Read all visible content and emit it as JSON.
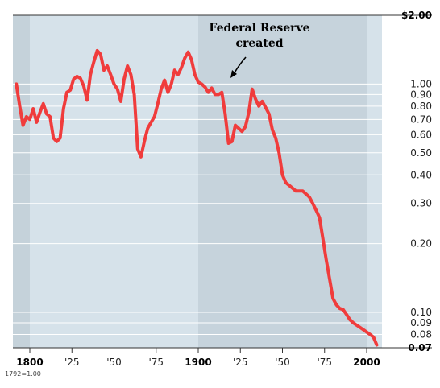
{
  "chart_data": {
    "type": "line",
    "title": "",
    "xlabel": "",
    "ylabel": "",
    "y_scale": "log",
    "xlim": [
      1792,
      2007
    ],
    "ylim": [
      0.07,
      2.0
    ],
    "grid": true,
    "y_ticks": [
      {
        "value": 2.0,
        "label": "$2.00",
        "bold": true
      },
      {
        "value": 1.0,
        "label": "1.00"
      },
      {
        "value": 0.9,
        "label": "0.90"
      },
      {
        "value": 0.8,
        "label": "0.80"
      },
      {
        "value": 0.7,
        "label": "0.70"
      },
      {
        "value": 0.6,
        "label": "0.60"
      },
      {
        "value": 0.5,
        "label": "0.50"
      },
      {
        "value": 0.4,
        "label": "0.40"
      },
      {
        "value": 0.3,
        "label": "0.30"
      },
      {
        "value": 0.2,
        "label": "0.20"
      },
      {
        "value": 0.1,
        "label": "0.10"
      },
      {
        "value": 0.09,
        "label": "0.09"
      },
      {
        "value": 0.08,
        "label": "0.08"
      },
      {
        "value": 0.07,
        "label": "0.07",
        "bold": true
      }
    ],
    "x_ticks": [
      {
        "value": 1800,
        "label": "1800",
        "bold": true
      },
      {
        "value": 1825,
        "label": "'25"
      },
      {
        "value": 1850,
        "label": "'50"
      },
      {
        "value": 1875,
        "label": "'75"
      },
      {
        "value": 1900,
        "label": "1900",
        "bold": true
      },
      {
        "value": 1925,
        "label": "'25"
      },
      {
        "value": 1950,
        "label": "'50"
      },
      {
        "value": 1975,
        "label": "'75"
      },
      {
        "value": 2000,
        "label": "2000",
        "bold": true
      }
    ],
    "base_note": "1792=1.00",
    "annotation": {
      "line1": "Federal Reserve",
      "line2": "created"
    },
    "series": [
      {
        "color": "#f03c3c",
        "x": [
          1792,
          1794,
          1796,
          1798,
          1800,
          1802,
          1804,
          1806,
          1808,
          1810,
          1812,
          1814,
          1816,
          1818,
          1820,
          1822,
          1824,
          1826,
          1828,
          1830,
          1832,
          1834,
          1836,
          1838,
          1840,
          1842,
          1844,
          1846,
          1848,
          1850,
          1852,
          1854,
          1856,
          1858,
          1860,
          1862,
          1864,
          1866,
          1868,
          1870,
          1872,
          1874,
          1876,
          1878,
          1880,
          1882,
          1884,
          1886,
          1888,
          1890,
          1892,
          1894,
          1896,
          1898,
          1900,
          1902,
          1904,
          1906,
          1908,
          1910,
          1912,
          1914,
          1916,
          1918,
          1920,
          1922,
          1924,
          1926,
          1928,
          1930,
          1932,
          1934,
          1936,
          1938,
          1940,
          1942,
          1944,
          1946,
          1948,
          1950,
          1952,
          1954,
          1956,
          1958,
          1960,
          1962,
          1964,
          1966,
          1968,
          1970,
          1972,
          1974,
          1976,
          1978,
          1980,
          1982,
          1984,
          1986,
          1988,
          1990,
          1992,
          1994,
          1996,
          1998,
          2000,
          2002,
          2004,
          2006
        ],
        "y": [
          1.0,
          0.8,
          0.66,
          0.72,
          0.7,
          0.78,
          0.68,
          0.75,
          0.82,
          0.74,
          0.72,
          0.58,
          0.56,
          0.58,
          0.78,
          0.92,
          0.94,
          1.05,
          1.08,
          1.06,
          0.98,
          0.85,
          1.1,
          1.25,
          1.4,
          1.35,
          1.15,
          1.2,
          1.1,
          1.0,
          0.95,
          0.84,
          1.05,
          1.2,
          1.1,
          0.9,
          0.52,
          0.48,
          0.56,
          0.64,
          0.68,
          0.72,
          0.82,
          0.95,
          1.04,
          0.92,
          1.0,
          1.15,
          1.1,
          1.18,
          1.3,
          1.38,
          1.28,
          1.1,
          1.02,
          1.0,
          0.97,
          0.92,
          0.96,
          0.9,
          0.9,
          0.92,
          0.74,
          0.55,
          0.56,
          0.66,
          0.64,
          0.62,
          0.65,
          0.75,
          0.95,
          0.86,
          0.8,
          0.84,
          0.79,
          0.74,
          0.63,
          0.58,
          0.5,
          0.4,
          0.37,
          0.36,
          0.35,
          0.34,
          0.34,
          0.34,
          0.33,
          0.32,
          0.3,
          0.28,
          0.26,
          0.21,
          0.17,
          0.14,
          0.115,
          0.108,
          0.104,
          0.103,
          0.098,
          0.093,
          0.09,
          0.088,
          0.086,
          0.084,
          0.082,
          0.08,
          0.078,
          0.072
        ]
      }
    ]
  }
}
